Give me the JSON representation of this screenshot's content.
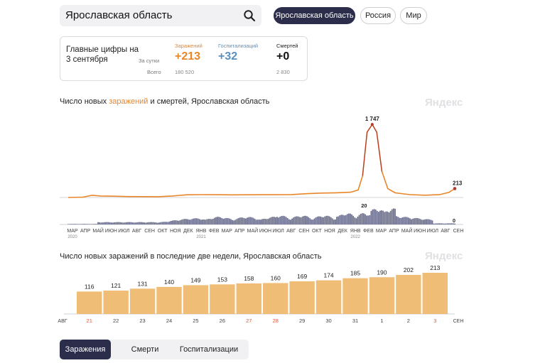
{
  "search": {
    "value": "Ярославская область"
  },
  "region_pills": [
    {
      "label": "Ярославская область",
      "active": true
    },
    {
      "label": "Россия",
      "active": false
    },
    {
      "label": "Мир",
      "active": false
    }
  ],
  "stats": {
    "title": "Главные цифры на 3 сентября",
    "row_day": "За сутки",
    "row_total": "Всего",
    "infections": {
      "label": "Заражений",
      "today": "+213",
      "total": "180 520"
    },
    "hospital": {
      "label": "Госпитализаций",
      "today": "+32"
    },
    "deaths": {
      "label": "Смертей",
      "today": "+0",
      "total": "2 830"
    }
  },
  "colors": {
    "accent_orange": "#e8862a",
    "hosp_blue": "#5a8fbe",
    "bar_fill": "#f0bd76",
    "death_red": "#c0392b",
    "dark": "#2b2d4b"
  },
  "watermark": "Яндекс",
  "chart_data": [
    {
      "type": "line",
      "title_parts": [
        "Число новых ",
        "заражений",
        " и смертей, Ярославская область"
      ],
      "series": [
        {
          "name": "Заражения",
          "color": "#e8862a",
          "points": [
            [
              0,
              0
            ],
            [
              1,
              8
            ],
            [
              1.6,
              52
            ],
            [
              2.2,
              35
            ],
            [
              3,
              30
            ],
            [
              4,
              22
            ],
            [
              5,
              20
            ],
            [
              6,
              18
            ],
            [
              7,
              35
            ],
            [
              8,
              65
            ],
            [
              9,
              68
            ],
            [
              10,
              66
            ],
            [
              11,
              63
            ],
            [
              12,
              65
            ],
            [
              13,
              66
            ],
            [
              14,
              66
            ],
            [
              15,
              70
            ],
            [
              16,
              90
            ],
            [
              17,
              106
            ],
            [
              18,
              112
            ],
            [
              19,
              126
            ],
            [
              19.5,
              178
            ],
            [
              19.8,
              520
            ],
            [
              20.1,
              1560
            ],
            [
              20.45,
              1747
            ],
            [
              20.75,
              1560
            ],
            [
              21.1,
              620
            ],
            [
              21.5,
              210
            ],
            [
              22,
              110
            ],
            [
              23,
              68
            ],
            [
              24,
              55
            ],
            [
              25,
              70
            ],
            [
              25.6,
              120
            ],
            [
              26,
              213
            ]
          ]
        }
      ],
      "peak_label": "1 747",
      "last_label": "213",
      "ylim": [
        0,
        1800
      ],
      "deaths_peak_label": "20",
      "deaths_last_label": "0",
      "deaths_ylim": [
        0,
        22
      ],
      "x_ticks": [
        "МАР",
        "АПР",
        "МАЙ",
        "ИЮН",
        "ИЮЛ",
        "АВГ",
        "СЕН",
        "ОКТ",
        "НОЯ",
        "ДЕК",
        "ЯНВ",
        "ФЕВ",
        "МАР",
        "АПР",
        "МАЙ",
        "ИЮН",
        "ИЮЛ",
        "АВГ",
        "СЕН",
        "ОКТ",
        "НОЯ",
        "ДЕК",
        "ЯНВ",
        "ФЕВ",
        "МАР",
        "АПР",
        "МАЙ",
        "ИЮН",
        "ИЮЛ",
        "АВГ",
        "СЕН"
      ],
      "year_labels": [
        {
          "year": "2020",
          "at": 0
        },
        {
          "year": "2021",
          "at": 10
        },
        {
          "year": "2022",
          "at": 22
        }
      ]
    },
    {
      "type": "bar",
      "title": "Число новых заражений в последние две недели, Ярославская область",
      "categories": [
        "21",
        "22",
        "23",
        "24",
        "25",
        "26",
        "27",
        "28",
        "29",
        "30",
        "31",
        "1",
        "2",
        "3"
      ],
      "values": [
        116,
        121,
        131,
        140,
        149,
        153,
        158,
        160,
        169,
        174,
        185,
        190,
        202,
        213
      ],
      "weekend": [
        true,
        false,
        false,
        false,
        false,
        false,
        true,
        true,
        false,
        false,
        false,
        false,
        false,
        true
      ],
      "left_month": "АВГ",
      "right_month": "СЕН",
      "ylim": [
        0,
        240
      ]
    }
  ],
  "tabs": [
    {
      "label": "Заражения",
      "active": true
    },
    {
      "label": "Смерти",
      "active": false
    },
    {
      "label": "Госпитализации",
      "active": false
    }
  ]
}
